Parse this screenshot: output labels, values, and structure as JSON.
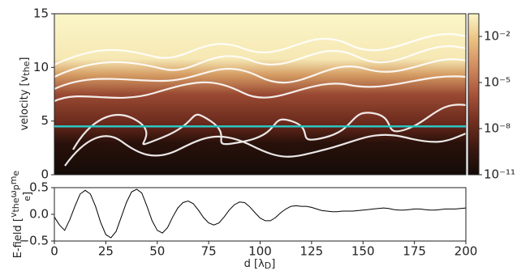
{
  "chart_data": [
    {
      "type": "heatmap",
      "ylabel": {
        "text": "velocity [v",
        "sub": "the",
        "end": "]"
      },
      "xlim": [
        0,
        200
      ],
      "ylim": [
        0,
        15
      ],
      "yticks": [
        0,
        5,
        10,
        15
      ],
      "hline": 4.5,
      "hline_color": "#2ec4c4",
      "colormap": [
        "#140b07",
        "#3d1810",
        "#74301f",
        "#a8533a",
        "#d08a5e",
        "#eabf80",
        "#fbf6c8"
      ],
      "colorbar": {
        "lim": [
          1e-11,
          0.3
        ],
        "log": true,
        "ticks": [
          {
            "value": 1e-11,
            "label": "10⁻¹¹"
          },
          {
            "value": 1e-08,
            "label": "10⁻⁸"
          },
          {
            "value": 1e-05,
            "label": "10⁻⁵"
          },
          {
            "value": 0.01,
            "label": "10⁻²"
          }
        ]
      }
    },
    {
      "type": "line",
      "ylabel": {
        "text": "E-field [",
        "num": [
          "v",
          "the",
          "ω",
          "p",
          "m",
          "e"
        ],
        "den": "e",
        "end": "]"
      },
      "xlabel": {
        "text": "d [λ",
        "sub": "D",
        "end": "]"
      },
      "xlim": [
        0,
        200
      ],
      "ylim": [
        -0.5,
        0.5
      ],
      "xticks": [
        0,
        25,
        50,
        75,
        100,
        125,
        150,
        175,
        200
      ],
      "yticks": [
        {
          "value": -0.5,
          "label": "−0.5"
        },
        {
          "value": 0,
          "label": "0.0"
        },
        {
          "value": 0.5,
          "label": "0.5"
        }
      ],
      "color": "#000000",
      "x": [
        0,
        2.5,
        5,
        7.5,
        10,
        12.5,
        15,
        17.5,
        20,
        22.5,
        25,
        27.5,
        30,
        32.5,
        35,
        37.5,
        40,
        42.5,
        45,
        47.5,
        50,
        52.5,
        55,
        57.5,
        60,
        62.5,
        65,
        67.5,
        70,
        72.5,
        75,
        77.5,
        80,
        82.5,
        85,
        87.5,
        90,
        92.5,
        95,
        97.5,
        100,
        102.5,
        105,
        107.5,
        110,
        112.5,
        115,
        117.5,
        120,
        122.5,
        125,
        127.5,
        130,
        132.5,
        135,
        137.5,
        140,
        142.5,
        145,
        147.5,
        150,
        152.5,
        155,
        157.5,
        160,
        162.5,
        165,
        167.5,
        170,
        172.5,
        175,
        177.5,
        180,
        182.5,
        185,
        187.5,
        190,
        192.5,
        195,
        197.5,
        200
      ],
      "values": [
        -0.05,
        -0.2,
        -0.3,
        -0.1,
        0.15,
        0.38,
        0.45,
        0.38,
        0.15,
        -0.15,
        -0.38,
        -0.44,
        -0.32,
        -0.05,
        0.22,
        0.42,
        0.47,
        0.4,
        0.15,
        -0.12,
        -0.3,
        -0.35,
        -0.25,
        -0.05,
        0.12,
        0.22,
        0.25,
        0.2,
        0.08,
        -0.06,
        -0.16,
        -0.2,
        -0.16,
        -0.05,
        0.08,
        0.18,
        0.23,
        0.22,
        0.14,
        0.03,
        -0.07,
        -0.12,
        -0.12,
        -0.06,
        0.03,
        0.1,
        0.15,
        0.16,
        0.15,
        0.15,
        0.13,
        0.1,
        0.07,
        0.06,
        0.05,
        0.05,
        0.06,
        0.06,
        0.06,
        0.07,
        0.08,
        0.09,
        0.1,
        0.11,
        0.12,
        0.11,
        0.09,
        0.08,
        0.08,
        0.09,
        0.1,
        0.1,
        0.09,
        0.08,
        0.08,
        0.09,
        0.1,
        0.1,
        0.1,
        0.11,
        0.12
      ]
    }
  ]
}
